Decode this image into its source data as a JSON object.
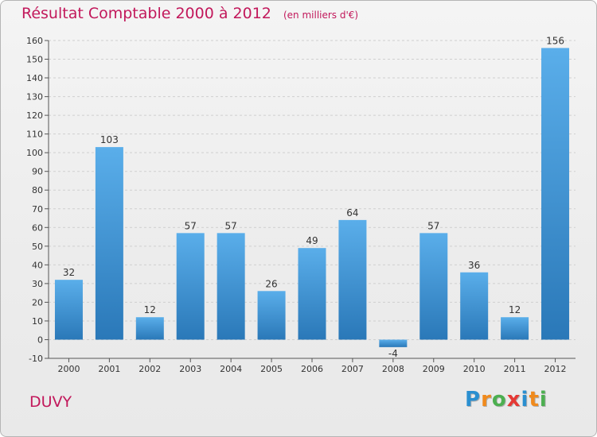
{
  "title": "Résultat Comptable 2000 à 2012",
  "unit_note": "(en milliers d'€)",
  "commune": "DUVY",
  "brand": {
    "letters": [
      "P",
      "r",
      "o",
      "x",
      "i",
      "t",
      "i"
    ],
    "colors": [
      "#2a8fd0",
      "#f08a1c",
      "#4caf50",
      "#e53935",
      "#2a8fd0",
      "#f08a1c",
      "#4caf50"
    ]
  },
  "colors": {
    "bar_top": "#5aaeea",
    "bar_bottom": "#2a78b8",
    "title": "#c2185b",
    "grid": "#cfcfcf"
  },
  "chart_data": {
    "type": "bar",
    "title": "Résultat Comptable 2000 à 2012",
    "ylabel": "en milliers d'€",
    "categories": [
      "2000",
      "2001",
      "2002",
      "2003",
      "2004",
      "2005",
      "2006",
      "2007",
      "2008",
      "2009",
      "2010",
      "2011",
      "2012"
    ],
    "values": [
      32,
      103,
      12,
      57,
      57,
      26,
      49,
      64,
      -4,
      57,
      36,
      12,
      156
    ],
    "data_labels": [
      "32",
      "103",
      "12",
      "57",
      "57",
      "26",
      "49",
      "64",
      "-4",
      "57",
      "36",
      "12",
      "156"
    ],
    "ylim": [
      -10,
      160
    ],
    "yticks": [
      -10,
      0,
      10,
      20,
      30,
      40,
      50,
      60,
      70,
      80,
      90,
      100,
      110,
      120,
      130,
      140,
      150,
      160
    ],
    "grid": true
  }
}
